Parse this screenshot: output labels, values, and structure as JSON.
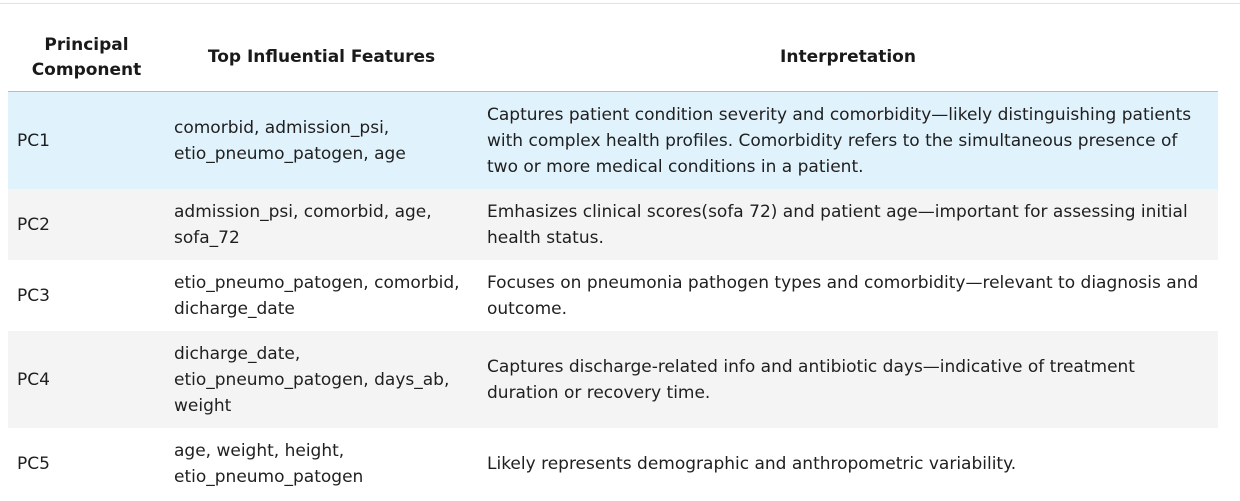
{
  "table": {
    "headers": {
      "component": "Principal Component",
      "features": "Top Influential Features",
      "interpretation": "Interpretation"
    },
    "rows": [
      {
        "component": "PC1",
        "features": "comorbid, admission_psi, etio_pneumo_patogen, age",
        "interpretation": "Captures patient condition severity and comorbidity—likely distinguishing patients with complex health profiles. Comorbidity refers to the simultaneous presence of two or more medical conditions in a patient."
      },
      {
        "component": "PC2",
        "features": "admission_psi, comorbid, age, sofa_72",
        "interpretation": "Emhasizes clinical scores(sofa 72) and patient age—important for assessing initial health status."
      },
      {
        "component": "PC3",
        "features": "etio_pneumo_patogen, comorbid, dicharge_date",
        "interpretation": "Focuses on pneumonia pathogen types and comorbidity—relevant to diagnosis and outcome."
      },
      {
        "component": "PC4",
        "features": "dicharge_date, etio_pneumo_patogen, days_ab, weight",
        "interpretation": "Captures discharge-related info and antibiotic days—indicative of treatment duration or recovery time."
      },
      {
        "component": "PC5",
        "features": "age, weight, height, etio_pneumo_patogen",
        "interpretation": "Likely represents demographic and anthropometric variability."
      }
    ]
  },
  "colors": {
    "highlight_row": "#e0f2fc",
    "alternate_row": "#f4f4f4",
    "header_rule": "#bcbcbc"
  }
}
